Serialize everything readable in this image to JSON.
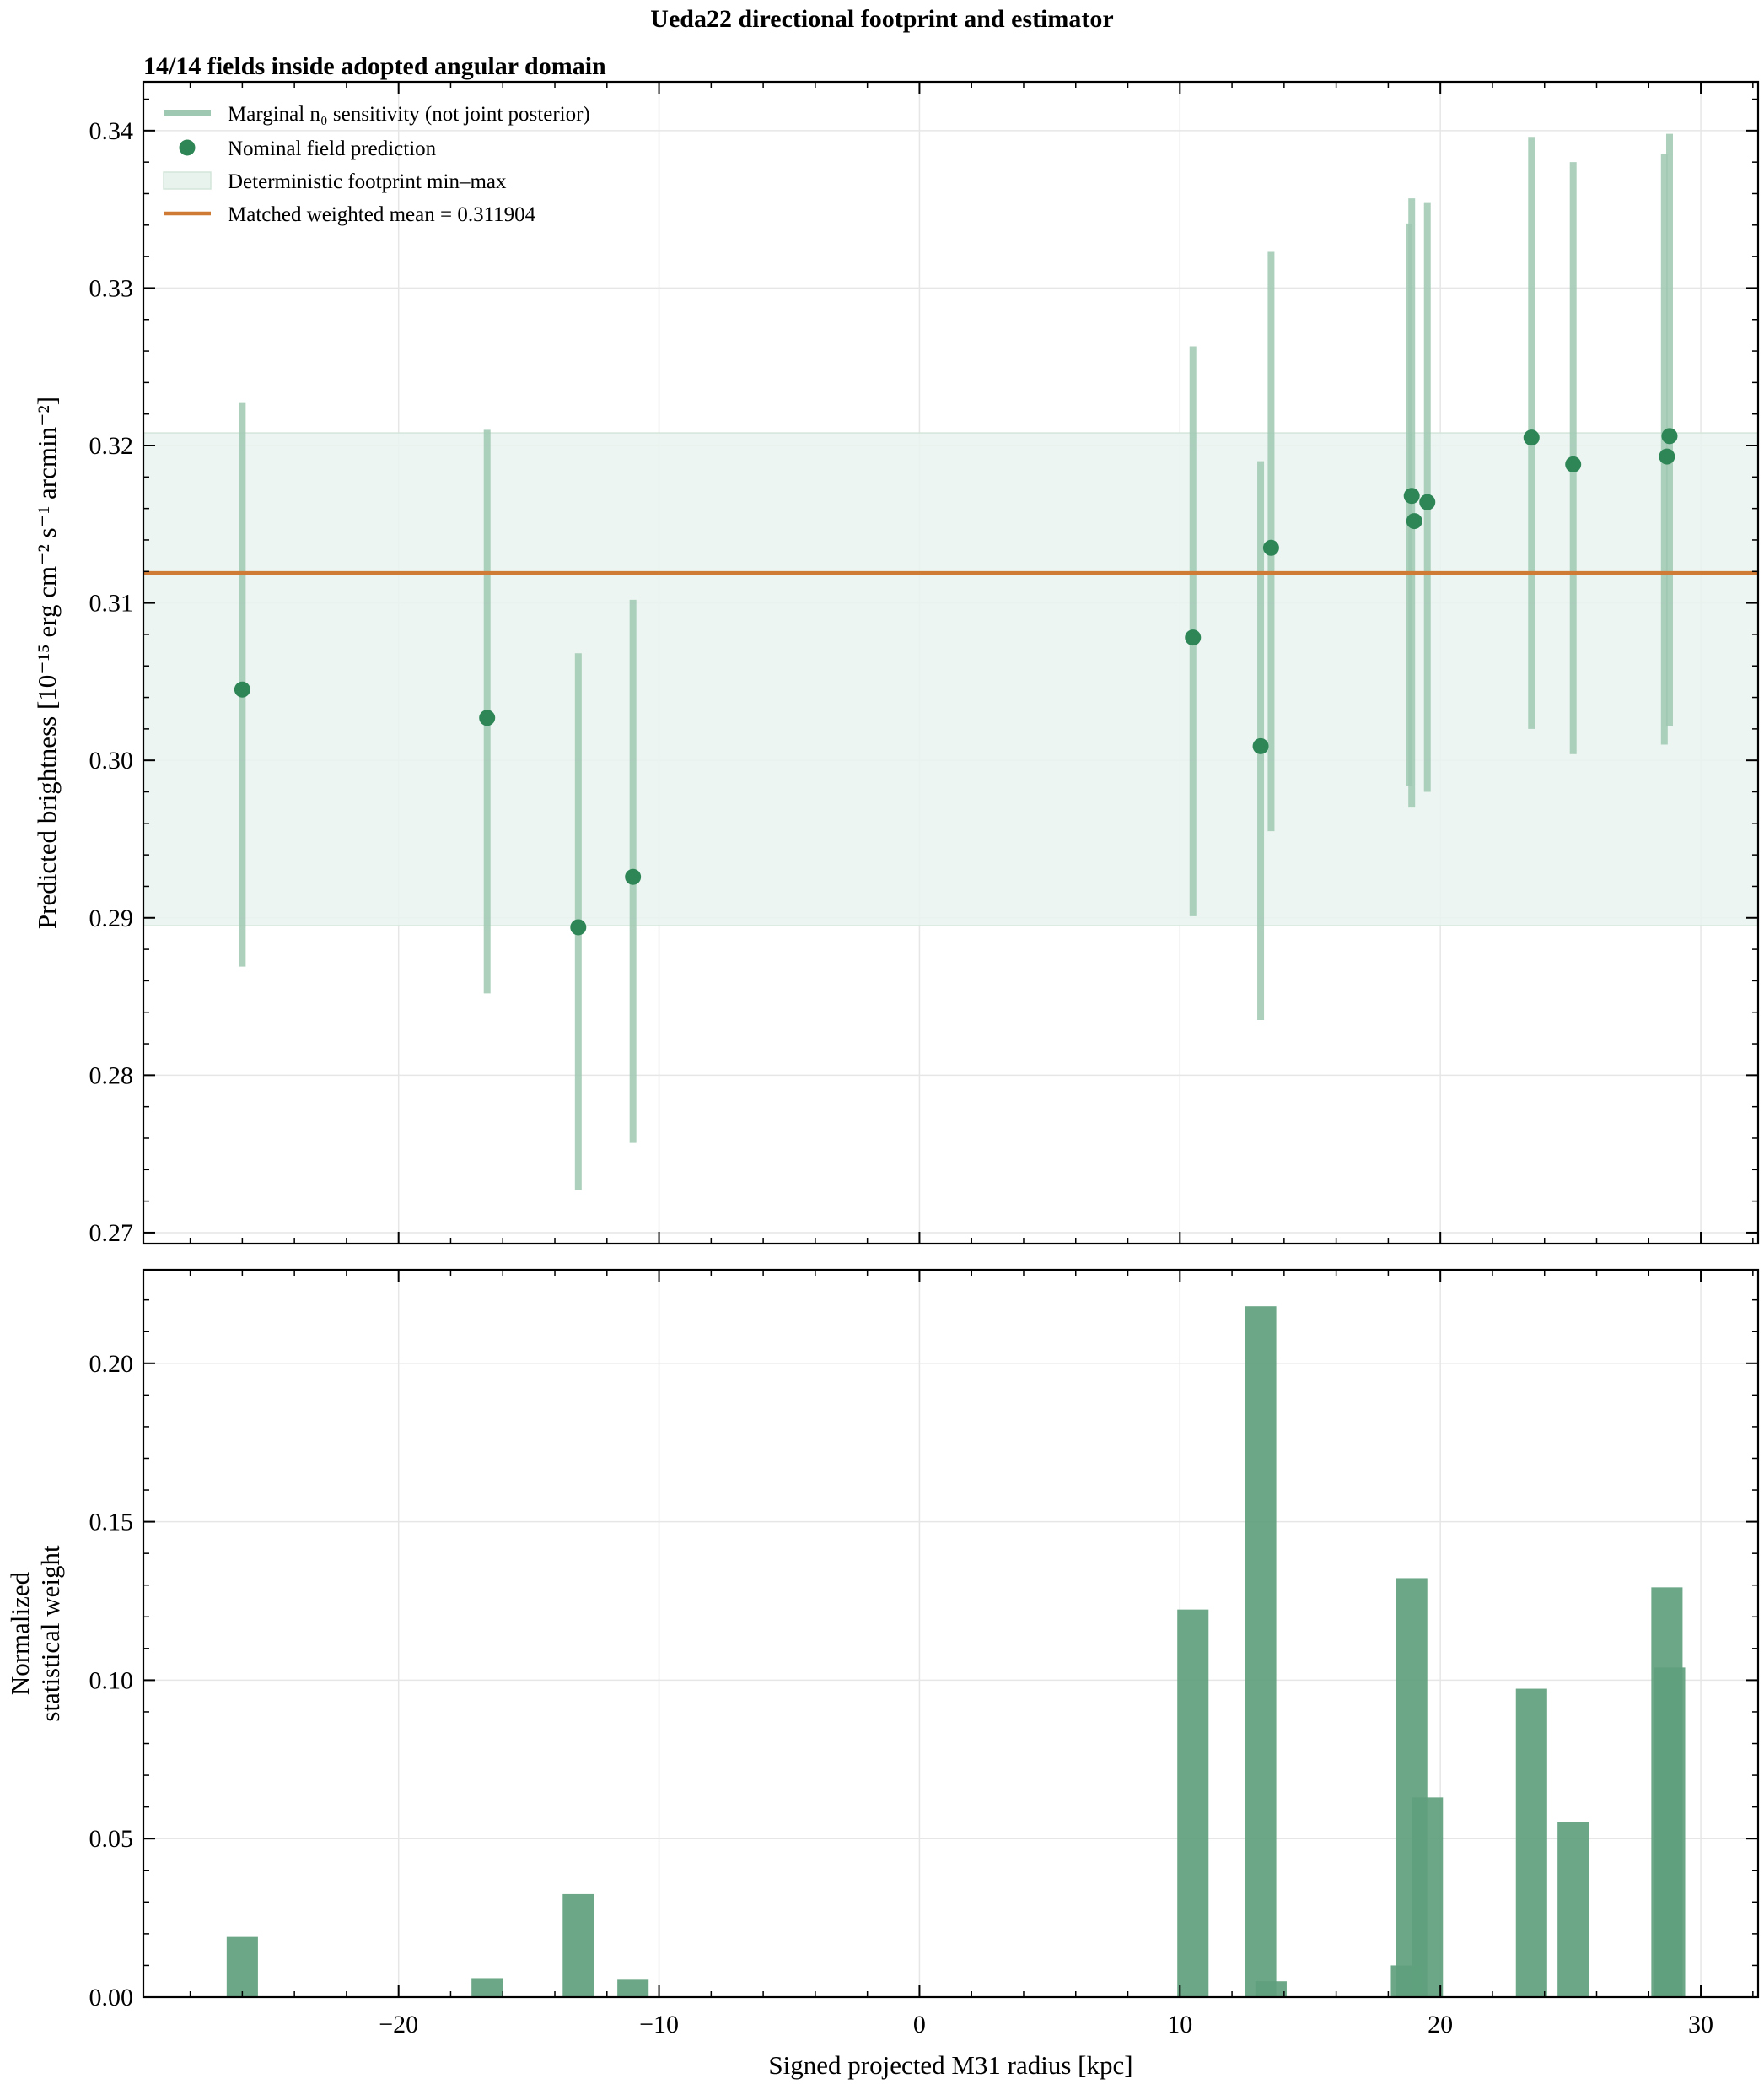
{
  "figure": {
    "title": "Ueda22 directional footprint and estimator",
    "subtitle": "14/14 fields inside adopted angular domain"
  },
  "colors": {
    "point": "#2e8657",
    "errorbar": "#9fc8b2",
    "band": "#e9f3ee",
    "band_edge": "#d3e6da",
    "mean_line": "#cf7b35",
    "bar": "#5f9f7d"
  },
  "chart_data": [
    {
      "type": "scatter",
      "title": "",
      "xlabel": "",
      "ylabel": "Predicted brightness [10⁻¹⁵ erg cm⁻² s⁻¹ arcmin⁻²]",
      "xlim": [
        -29.8,
        32.2
      ],
      "ylim": [
        0.2693,
        0.3431
      ],
      "x_ticks": [
        -20,
        -10,
        0,
        10,
        20,
        30
      ],
      "y_ticks": [
        0.27,
        0.28,
        0.29,
        0.3,
        0.31,
        0.32,
        0.33,
        0.34
      ],
      "y_tick_labels": [
        "0.27",
        "0.28",
        "0.29",
        "0.30",
        "0.31",
        "0.32",
        "0.33",
        "0.34"
      ],
      "grid": true,
      "legend": {
        "placement": "top-left",
        "entries": [
          {
            "kind": "errorbar",
            "label": "Marginal n₀ sensitivity (not joint posterior)"
          },
          {
            "kind": "point",
            "label": "Nominal field prediction"
          },
          {
            "kind": "band",
            "label": "Deterministic footprint min–max"
          },
          {
            "kind": "line",
            "label": "Matched weighted mean = 0.311904"
          }
        ]
      },
      "band": {
        "ymin": 0.2895,
        "ymax": 0.3208
      },
      "weighted_mean": 0.311904,
      "series": [
        {
          "name": "Nominal field prediction",
          "points": [
            {
              "x": -26.0,
              "y": 0.3045
            },
            {
              "x": -16.6,
              "y": 0.3027
            },
            {
              "x": -13.1,
              "y": 0.2894
            },
            {
              "x": -11.0,
              "y": 0.2926
            },
            {
              "x": 10.5,
              "y": 0.3078
            },
            {
              "x": 13.1,
              "y": 0.3009
            },
            {
              "x": 13.5,
              "y": 0.3135
            },
            {
              "x": 18.9,
              "y": 0.3168
            },
            {
              "x": 19.0,
              "y": 0.3152
            },
            {
              "x": 19.5,
              "y": 0.3164
            },
            {
              "x": 23.5,
              "y": 0.3205
            },
            {
              "x": 25.1,
              "y": 0.3188
            },
            {
              "x": 28.7,
              "y": 0.3193
            },
            {
              "x": 28.8,
              "y": 0.3206
            }
          ]
        },
        {
          "name": "Marginal n₀ sensitivity (not joint posterior)",
          "ranges": [
            {
              "x": -26.0,
              "low": 0.2869,
              "high": 0.3227
            },
            {
              "x": -16.6,
              "low": 0.2852,
              "high": 0.321
            },
            {
              "x": -13.1,
              "low": 0.2727,
              "high": 0.3068
            },
            {
              "x": -11.0,
              "low": 0.2757,
              "high": 0.3102
            },
            {
              "x": 10.5,
              "low": 0.2901,
              "high": 0.3263
            },
            {
              "x": 13.1,
              "low": 0.2835,
              "high": 0.319
            },
            {
              "x": 13.5,
              "low": 0.2955,
              "high": 0.3323
            },
            {
              "x": 18.8,
              "low": 0.2984,
              "high": 0.3341
            },
            {
              "x": 18.9,
              "low": 0.297,
              "high": 0.3357
            },
            {
              "x": 19.5,
              "low": 0.298,
              "high": 0.3354
            },
            {
              "x": 23.5,
              "low": 0.302,
              "high": 0.3396
            },
            {
              "x": 25.1,
              "low": 0.3004,
              "high": 0.338
            },
            {
              "x": 28.6,
              "low": 0.301,
              "high": 0.3385
            },
            {
              "x": 28.8,
              "low": 0.3022,
              "high": 0.3398
            }
          ]
        }
      ]
    },
    {
      "type": "bar",
      "title": "",
      "xlabel": "Signed projected M31 radius [kpc]",
      "ylabel": "Normalized statistical weight",
      "ylabel_lines": [
        "Normalized",
        "statistical weight"
      ],
      "xlim": [
        -29.8,
        32.2
      ],
      "ylim": [
        0,
        0.2295
      ],
      "x_ticks": [
        -20,
        -10,
        0,
        10,
        20,
        30
      ],
      "x_tick_labels": [
        "−20",
        "−10",
        "0",
        "10",
        "20",
        "30"
      ],
      "y_ticks": [
        0,
        0.05,
        0.1,
        0.15,
        0.2
      ],
      "y_tick_labels": [
        "0.00",
        "0.05",
        "0.10",
        "0.15",
        "0.20"
      ],
      "grid": true,
      "bar_width": 1.2,
      "bars": [
        {
          "x": -26.0,
          "value": 0.019
        },
        {
          "x": -16.6,
          "value": 0.006
        },
        {
          "x": -13.1,
          "value": 0.0325
        },
        {
          "x": -11.0,
          "value": 0.0055
        },
        {
          "x": 10.5,
          "value": 0.1223
        },
        {
          "x": 13.1,
          "value": 0.218
        },
        {
          "x": 13.5,
          "value": 0.005
        },
        {
          "x": 18.7,
          "value": 0.01
        },
        {
          "x": 18.9,
          "value": 0.1322
        },
        {
          "x": 19.5,
          "value": 0.063
        },
        {
          "x": 23.5,
          "value": 0.0973
        },
        {
          "x": 25.1,
          "value": 0.0553
        },
        {
          "x": 28.7,
          "value": 0.1293
        },
        {
          "x": 28.8,
          "value": 0.104
        }
      ]
    }
  ]
}
